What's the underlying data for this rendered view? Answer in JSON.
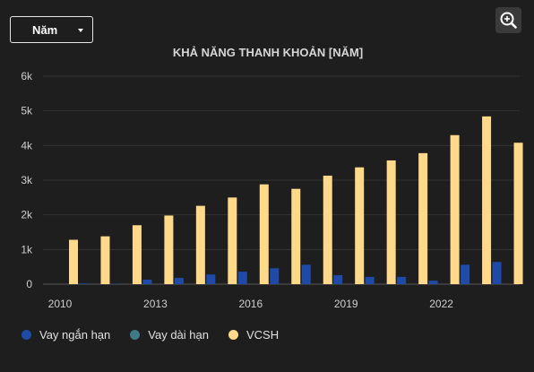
{
  "controls": {
    "period_label": "Năm",
    "zoom_icon": "zoom-in-icon"
  },
  "chart_data": {
    "type": "bar",
    "title": "KHẢ NĂNG THANH KHOẢN [NĂM]",
    "categories": [
      "2010",
      "2011",
      "2012",
      "2013",
      "2014",
      "2015",
      "2016",
      "2017",
      "2018",
      "2019",
      "2020",
      "2021",
      "2022",
      "2023",
      "2024"
    ],
    "x_tick_labels": [
      "2010",
      "2013",
      "2016",
      "2019",
      "2022"
    ],
    "y_tick_labels": [
      "0",
      "1k",
      "2k",
      "3k",
      "4k",
      "5k",
      "6k"
    ],
    "ylim": [
      0,
      6000
    ],
    "grid": true,
    "legend_position": "bottom-left",
    "series": [
      {
        "name": "Vay ngắn hạn",
        "color": "#1f4aa8",
        "values": [
          0,
          20,
          10,
          130,
          180,
          280,
          360,
          460,
          560,
          260,
          210,
          210,
          100,
          560,
          640
        ]
      },
      {
        "name": "Vay dài hạn",
        "color": "#3f7a86",
        "values": [
          0,
          0,
          0,
          0,
          0,
          0,
          0,
          0,
          0,
          0,
          0,
          0,
          0,
          0,
          0
        ]
      },
      {
        "name": "VCSH",
        "color": "#ffd98a",
        "values": [
          1280,
          1380,
          1700,
          1980,
          2260,
          2500,
          2880,
          2750,
          3130,
          3370,
          3570,
          3780,
          4300,
          4840,
          4080
        ]
      }
    ]
  }
}
